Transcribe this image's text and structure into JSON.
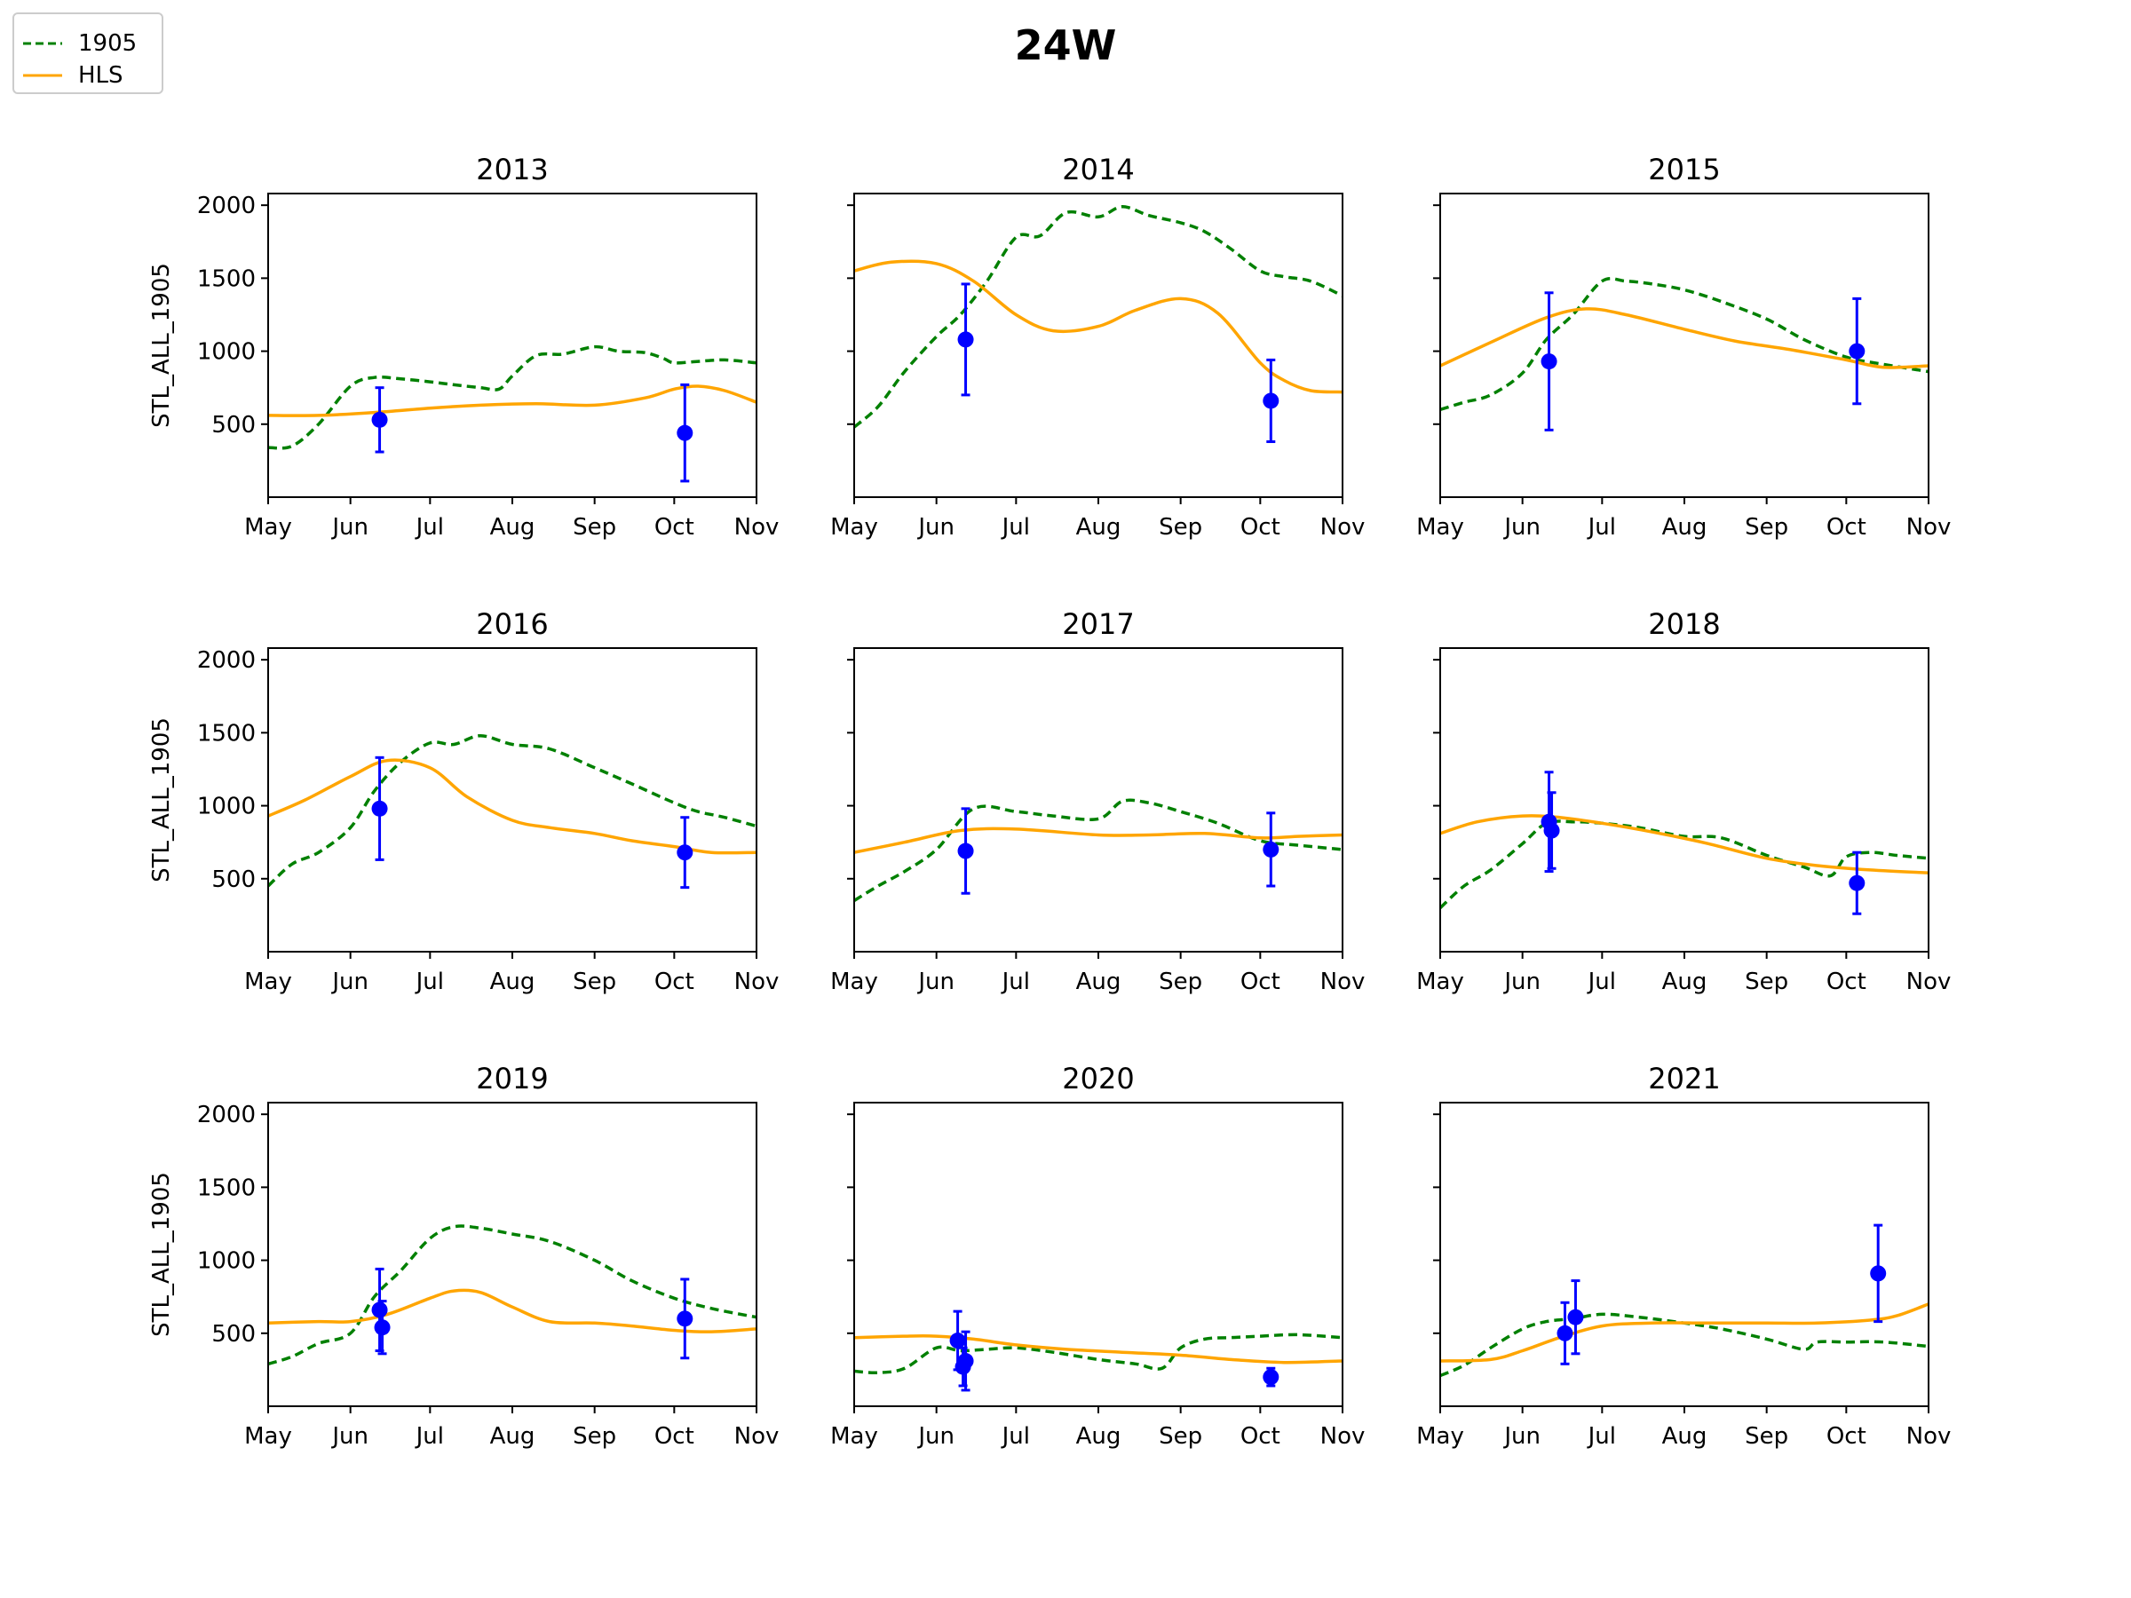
{
  "figure_title": "24W",
  "legend": [
    {
      "label": "1905",
      "color": "#008000",
      "style": "dashed"
    },
    {
      "label": "HLS",
      "color": "#FFA500",
      "style": "solid"
    }
  ],
  "colors": {
    "model_1905": "#008000",
    "hls": "#FFA500",
    "observations": "#0000FF"
  },
  "chart_data": [
    {
      "type": "line",
      "title": "2013",
      "ylabel": "STL_ALL_1905",
      "x_ticks": [
        "May",
        "Jun",
        "Jul",
        "Aug",
        "Sep",
        "Oct",
        "Nov"
      ],
      "ylim": [
        0,
        2080
      ],
      "y_ticks": [
        500,
        1000,
        1500,
        2000
      ],
      "series": [
        {
          "name": "1905",
          "x": [
            "May 1",
            "May 10",
            "May 20",
            "Jun 1",
            "Jun 10",
            "Jun 20",
            "Jul 1",
            "Jul 10",
            "Jul 20",
            "Jul 27",
            "Aug 1",
            "Aug 10",
            "Aug 20",
            "Sep 1",
            "Sep 10",
            "Sep 20",
            "Sep 27",
            "Oct 1",
            "Oct 10",
            "Oct 20",
            "Nov 1"
          ],
          "y": [
            340,
            350,
            500,
            760,
            820,
            810,
            790,
            770,
            750,
            740,
            830,
            970,
            980,
            1030,
            1000,
            990,
            950,
            920,
            930,
            940,
            920
          ]
        },
        {
          "name": "HLS",
          "x": [
            "May 1",
            "May 20",
            "Jun 10",
            "Jul 1",
            "Jul 20",
            "Aug 10",
            "Sep 1",
            "Sep 20",
            "Oct 1",
            "Oct 10",
            "Oct 20",
            "Nov 1"
          ],
          "y": [
            560,
            560,
            580,
            610,
            630,
            640,
            630,
            680,
            740,
            760,
            730,
            650
          ]
        }
      ],
      "observations": [
        {
          "x": "Jun 12",
          "y": 530,
          "err": 220
        },
        {
          "x": "Oct 5",
          "y": 440,
          "err": 330
        }
      ]
    },
    {
      "type": "line",
      "title": "2014",
      "ylabel": "",
      "x_ticks": [
        "May",
        "Jun",
        "Jul",
        "Aug",
        "Sep",
        "Oct",
        "Nov"
      ],
      "ylim": [
        0,
        2080
      ],
      "y_ticks": [
        500,
        1000,
        1500,
        2000
      ],
      "series": [
        {
          "name": "1905",
          "x": [
            "May 1",
            "May 10",
            "May 20",
            "Jun 1",
            "Jun 10",
            "Jun 20",
            "Jul 1",
            "Jul 10",
            "Jul 20",
            "Aug 1",
            "Aug 10",
            "Aug 20",
            "Sep 1",
            "Sep 10",
            "Sep 20",
            "Oct 1",
            "Oct 10",
            "Oct 20",
            "Nov 1"
          ],
          "y": [
            480,
            620,
            860,
            1100,
            1250,
            1480,
            1780,
            1790,
            1950,
            1920,
            1990,
            1930,
            1880,
            1820,
            1700,
            1550,
            1510,
            1480,
            1380
          ]
        },
        {
          "name": "HLS",
          "x": [
            "May 1",
            "May 15",
            "Jun 1",
            "Jun 15",
            "Jul 1",
            "Jul 15",
            "Aug 1",
            "Aug 15",
            "Sep 1",
            "Sep 15",
            "Oct 1",
            "Oct 10",
            "Oct 20",
            "Nov 1"
          ],
          "y": [
            1550,
            1610,
            1600,
            1480,
            1250,
            1140,
            1170,
            1280,
            1360,
            1260,
            920,
            800,
            730,
            720
          ]
        }
      ],
      "observations": [
        {
          "x": "Jun 12",
          "y": 1080,
          "err": 380
        },
        {
          "x": "Oct 5",
          "y": 660,
          "err": 280
        }
      ]
    },
    {
      "type": "line",
      "title": "2015",
      "ylabel": "",
      "x_ticks": [
        "May",
        "Jun",
        "Jul",
        "Aug",
        "Sep",
        "Oct",
        "Nov"
      ],
      "ylim": [
        0,
        2080
      ],
      "y_ticks": [
        500,
        1000,
        1500,
        2000
      ],
      "series": [
        {
          "name": "1905",
          "x": [
            "May 1",
            "May 10",
            "May 20",
            "Jun 1",
            "Jun 10",
            "Jun 20",
            "Jul 1",
            "Jul 10",
            "Jul 20",
            "Aug 1",
            "Aug 15",
            "Sep 1",
            "Sep 15",
            "Oct 1",
            "Oct 15",
            "Nov 1"
          ],
          "y": [
            600,
            650,
            700,
            850,
            1080,
            1250,
            1480,
            1480,
            1460,
            1420,
            1340,
            1220,
            1080,
            960,
            910,
            860
          ]
        },
        {
          "name": "HLS",
          "x": [
            "May 1",
            "May 20",
            "Jun 10",
            "Jun 25",
            "Jul 10",
            "Aug 1",
            "Aug 20",
            "Sep 10",
            "Oct 1",
            "Oct 15",
            "Nov 1"
          ],
          "y": [
            900,
            1060,
            1230,
            1290,
            1250,
            1150,
            1070,
            1010,
            940,
            890,
            900
          ]
        }
      ],
      "observations": [
        {
          "x": "Jun 11",
          "y": 930,
          "err": 470
        },
        {
          "x": "Oct 5",
          "y": 1000,
          "err": 360
        }
      ]
    },
    {
      "type": "line",
      "title": "2016",
      "ylabel": "STL_ALL_1905",
      "x_ticks": [
        "May",
        "Jun",
        "Jul",
        "Aug",
        "Sep",
        "Oct",
        "Nov"
      ],
      "ylim": [
        0,
        2080
      ],
      "y_ticks": [
        500,
        1000,
        1500,
        2000
      ],
      "series": [
        {
          "name": "1905",
          "x": [
            "May 1",
            "May 10",
            "May 20",
            "Jun 1",
            "Jun 10",
            "Jun 20",
            "Jul 1",
            "Jul 10",
            "Jul 20",
            "Aug 1",
            "Aug 15",
            "Sep 1",
            "Sep 15",
            "Oct 1",
            "Oct 10",
            "Oct 20",
            "Nov 1"
          ],
          "y": [
            450,
            600,
            680,
            850,
            1100,
            1300,
            1430,
            1420,
            1480,
            1420,
            1390,
            1260,
            1150,
            1020,
            960,
            920,
            860
          ]
        },
        {
          "name": "HLS",
          "x": [
            "May 1",
            "May 15",
            "Jun 1",
            "Jun 15",
            "Jul 1",
            "Jul 15",
            "Aug 1",
            "Aug 15",
            "Sep 1",
            "Sep 15",
            "Oct 1",
            "Oct 15",
            "Nov 1"
          ],
          "y": [
            930,
            1040,
            1200,
            1310,
            1260,
            1060,
            900,
            850,
            810,
            760,
            720,
            680,
            680
          ]
        }
      ],
      "observations": [
        {
          "x": "Jun 12",
          "y": 980,
          "err": 350
        },
        {
          "x": "Oct 5",
          "y": 680,
          "err": 240
        }
      ]
    },
    {
      "type": "line",
      "title": "2017",
      "ylabel": "",
      "x_ticks": [
        "May",
        "Jun",
        "Jul",
        "Aug",
        "Sep",
        "Oct",
        "Nov"
      ],
      "ylim": [
        0,
        2080
      ],
      "y_ticks": [
        500,
        1000,
        1500,
        2000
      ],
      "series": [
        {
          "name": "1905",
          "x": [
            "May 1",
            "May 10",
            "May 20",
            "Jun 1",
            "Jun 15",
            "Jul 1",
            "Jul 15",
            "Aug 1",
            "Aug 10",
            "Aug 20",
            "Sep 1",
            "Sep 15",
            "Oct 1",
            "Oct 15",
            "Nov 1"
          ],
          "y": [
            350,
            450,
            550,
            700,
            980,
            960,
            930,
            910,
            1030,
            1020,
            960,
            880,
            760,
            730,
            700
          ]
        },
        {
          "name": "HLS",
          "x": [
            "May 1",
            "May 20",
            "Jun 10",
            "Jul 1",
            "Aug 1",
            "Aug 20",
            "Sep 10",
            "Oct 1",
            "Oct 15",
            "Nov 1"
          ],
          "y": [
            680,
            750,
            830,
            840,
            800,
            800,
            810,
            780,
            790,
            800
          ]
        }
      ],
      "observations": [
        {
          "x": "Jun 12",
          "y": 690,
          "err": 290
        },
        {
          "x": "Oct 5",
          "y": 700,
          "err": 250
        }
      ]
    },
    {
      "type": "line",
      "title": "2018",
      "ylabel": "",
      "x_ticks": [
        "May",
        "Jun",
        "Jul",
        "Aug",
        "Sep",
        "Oct",
        "Nov"
      ],
      "ylim": [
        0,
        2080
      ],
      "y_ticks": [
        500,
        1000,
        1500,
        2000
      ],
      "series": [
        {
          "name": "1905",
          "x": [
            "May 1",
            "May 10",
            "May 20",
            "Jun 1",
            "Jun 10",
            "Jun 20",
            "Jul 1",
            "Jul 15",
            "Aug 1",
            "Aug 15",
            "Sep 1",
            "Sep 15",
            "Sep 25",
            "Oct 1",
            "Oct 10",
            "Oct 20",
            "Nov 1"
          ],
          "y": [
            300,
            450,
            560,
            740,
            880,
            890,
            880,
            850,
            790,
            780,
            660,
            580,
            520,
            650,
            680,
            660,
            640
          ]
        },
        {
          "name": "HLS",
          "x": [
            "May 1",
            "May 15",
            "Jun 1",
            "Jun 15",
            "Jul 1",
            "Jul 20",
            "Aug 10",
            "Sep 1",
            "Sep 20",
            "Oct 10",
            "Nov 1"
          ],
          "y": [
            810,
            890,
            930,
            920,
            880,
            820,
            740,
            640,
            590,
            560,
            540
          ]
        }
      ],
      "observations": [
        {
          "x": "Jun 11",
          "y": 890,
          "err": 340
        },
        {
          "x": "Jun 12",
          "y": 830,
          "err": 260
        },
        {
          "x": "Oct 5",
          "y": 470,
          "err": 210
        }
      ]
    },
    {
      "type": "line",
      "title": "2019",
      "ylabel": "STL_ALL_1905",
      "x_ticks": [
        "May",
        "Jun",
        "Jul",
        "Aug",
        "Sep",
        "Oct",
        "Nov"
      ],
      "ylim": [
        0,
        2080
      ],
      "y_ticks": [
        500,
        1000,
        1500,
        2000
      ],
      "series": [
        {
          "name": "1905",
          "x": [
            "May 1",
            "May 10",
            "May 20",
            "Jun 1",
            "Jun 10",
            "Jun 20",
            "Jul 1",
            "Jul 10",
            "Jul 20",
            "Aug 1",
            "Aug 15",
            "Sep 1",
            "Sep 15",
            "Oct 1",
            "Oct 15",
            "Nov 1"
          ],
          "y": [
            290,
            340,
            430,
            500,
            750,
            930,
            1150,
            1230,
            1220,
            1180,
            1130,
            1000,
            860,
            740,
            670,
            610
          ]
        },
        {
          "name": "HLS",
          "x": [
            "May 1",
            "May 20",
            "Jun 1",
            "Jun 15",
            "Jul 1",
            "Jul 10",
            "Jul 20",
            "Aug 1",
            "Aug 15",
            "Sep 1",
            "Sep 15",
            "Oct 1",
            "Oct 15",
            "Nov 1"
          ],
          "y": [
            570,
            580,
            580,
            630,
            740,
            790,
            780,
            680,
            580,
            570,
            550,
            520,
            510,
            530
          ]
        }
      ],
      "observations": [
        {
          "x": "Jun 12",
          "y": 660,
          "err": 280
        },
        {
          "x": "Jun 13",
          "y": 540,
          "err": 180
        },
        {
          "x": "Oct 5",
          "y": 600,
          "err": 270
        }
      ]
    },
    {
      "type": "line",
      "title": "2020",
      "ylabel": "",
      "x_ticks": [
        "May",
        "Jun",
        "Jul",
        "Aug",
        "Sep",
        "Oct",
        "Nov"
      ],
      "ylim": [
        0,
        2080
      ],
      "y_ticks": [
        500,
        1000,
        1500,
        2000
      ],
      "series": [
        {
          "name": "1905",
          "x": [
            "May 1",
            "May 10",
            "May 20",
            "Jun 1",
            "Jun 10",
            "Jun 20",
            "Jul 1",
            "Jul 15",
            "Aug 1",
            "Aug 15",
            "Aug 25",
            "Sep 1",
            "Sep 10",
            "Sep 20",
            "Oct 1",
            "Oct 15",
            "Nov 1"
          ],
          "y": [
            240,
            230,
            260,
            400,
            380,
            390,
            400,
            370,
            320,
            290,
            260,
            400,
            460,
            470,
            480,
            490,
            470
          ]
        },
        {
          "name": "HLS",
          "x": [
            "May 1",
            "May 20",
            "Jun 1",
            "Jun 15",
            "Jul 1",
            "Jul 20",
            "Aug 10",
            "Sep 1",
            "Sep 20",
            "Oct 10",
            "Nov 1"
          ],
          "y": [
            470,
            480,
            480,
            460,
            420,
            390,
            370,
            350,
            320,
            300,
            310
          ]
        }
      ],
      "observations": [
        {
          "x": "Jun 9",
          "y": 450,
          "err": 200
        },
        {
          "x": "Jun 11",
          "y": 270,
          "err": 130
        },
        {
          "x": "Jun 12",
          "y": 310,
          "err": 200
        },
        {
          "x": "Oct 5",
          "y": 200,
          "err": 60
        }
      ]
    },
    {
      "type": "line",
      "title": "2021",
      "ylabel": "",
      "x_ticks": [
        "May",
        "Jun",
        "Jul",
        "Aug",
        "Sep",
        "Oct",
        "Nov"
      ],
      "ylim": [
        0,
        2080
      ],
      "y_ticks": [
        500,
        1000,
        1500,
        2000
      ],
      "series": [
        {
          "name": "1905",
          "x": [
            "May 1",
            "May 10",
            "May 20",
            "Jun 1",
            "Jun 10",
            "Jun 20",
            "Jul 1",
            "Jul 15",
            "Aug 1",
            "Aug 15",
            "Sep 1",
            "Sep 15",
            "Sep 20",
            "Oct 1",
            "Oct 15",
            "Nov 1"
          ],
          "y": [
            210,
            280,
            400,
            530,
            580,
            600,
            630,
            610,
            570,
            530,
            460,
            390,
            440,
            440,
            440,
            410
          ]
        },
        {
          "name": "HLS",
          "x": [
            "May 1",
            "May 20",
            "Jun 1",
            "Jun 15",
            "Jul 1",
            "Jul 20",
            "Aug 10",
            "Sep 1",
            "Sep 20",
            "Oct 10",
            "Oct 20",
            "Nov 1"
          ],
          "y": [
            310,
            320,
            380,
            470,
            550,
            570,
            570,
            570,
            570,
            590,
            620,
            700
          ]
        }
      ],
      "observations": [
        {
          "x": "Jun 17",
          "y": 500,
          "err": 210
        },
        {
          "x": "Jun 21",
          "y": 610,
          "err": 250
        },
        {
          "x": "Oct 13",
          "y": 910,
          "err": 330
        }
      ]
    }
  ]
}
